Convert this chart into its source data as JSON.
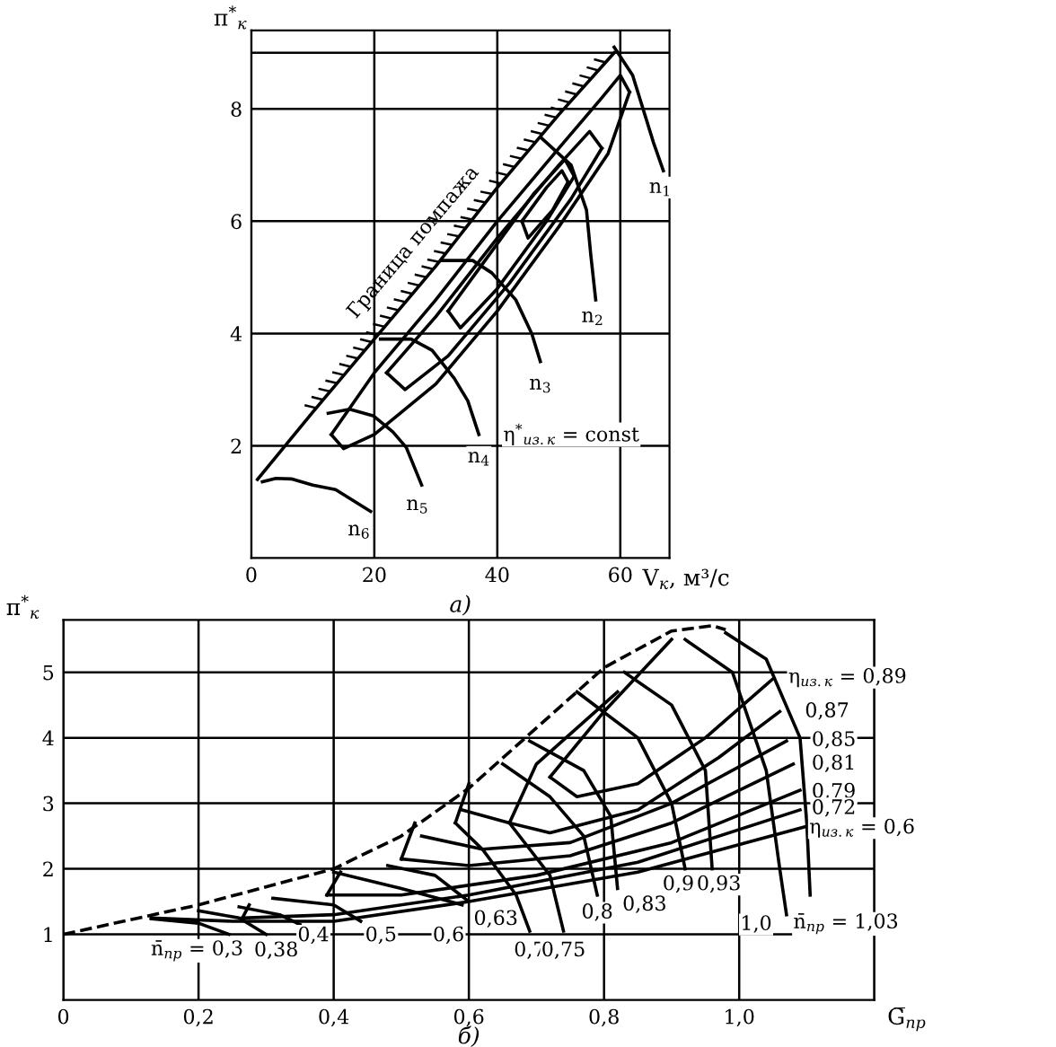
{
  "chart_data": [
    {
      "type": "line",
      "xlabel": "V$_{к}$, м³/с",
      "ylabel": "π$^{*}$$_{к}$",
      "xlim": [
        0,
        68
      ],
      "ylim": [
        0,
        9.4
      ],
      "xticks": [
        0,
        20,
        40,
        60
      ],
      "yticks": [
        2,
        4,
        6,
        8,
        {
          "value": 9,
          "label": null
        }
      ],
      "grid": true,
      "legend": false,
      "marker": "none",
      "line_style": "solid",
      "series": [
        {
          "name": "Граница помпажа",
          "color": "#000000",
          "x": [
            1,
            10,
            20,
            30,
            40,
            50,
            59
          ],
          "values": [
            1.4,
            2.6,
            3.9,
            5.2,
            6.6,
            7.9,
            9.0
          ]
        },
        {
          "color": "#000000",
          "x": [
            59,
            62,
            65.4,
            67
          ],
          "values": [
            9.1,
            8.6,
            7.4,
            6.9
          ]
        },
        {
          "color": "#000000",
          "x": [
            47,
            52,
            54.5,
            55.2,
            56
          ],
          "values": [
            7.5,
            7.0,
            6.2,
            5.4,
            4.6
          ]
        },
        {
          "color": "#000000",
          "x": [
            31,
            36,
            39.1,
            43,
            45.6,
            47
          ],
          "values": [
            5.3,
            5.3,
            5.08,
            4.6,
            4.0,
            3.5
          ]
        },
        {
          "color": "#000000",
          "x": [
            21,
            26,
            29.4,
            33,
            35.2,
            37
          ],
          "values": [
            3.9,
            3.9,
            3.7,
            3.2,
            2.8,
            2.2
          ]
        },
        {
          "color": "#000000",
          "x": [
            12.5,
            16,
            19.9,
            23,
            25.2,
            27.7
          ],
          "values": [
            2.58,
            2.65,
            2.53,
            2.25,
            1.97,
            1.3
          ]
        },
        {
          "color": "#000000",
          "x": [
            1.8,
            4,
            6.5,
            10,
            13.7,
            19.4
          ],
          "values": [
            1.36,
            1.42,
            1.41,
            1.3,
            1.22,
            0.83
          ]
        },
        {
          "color": "#000000",
          "x": [
            13,
            20,
            30,
            40,
            50,
            57,
            60,
            61.5
          ],
          "values": [
            2.2,
            3.3,
            4.6,
            6.0,
            7.3,
            8.2,
            8.6,
            8.3
          ]
        },
        {
          "color": "#000000",
          "x": [
            13,
            15,
            20,
            30,
            40,
            50,
            58,
            61.5
          ],
          "values": [
            2.2,
            1.95,
            2.2,
            3.1,
            4.4,
            5.9,
            7.2,
            8.3
          ]
        },
        {
          "color": "#000000",
          "x": [
            22,
            30,
            40,
            50,
            55,
            57
          ],
          "values": [
            3.3,
            4.3,
            5.7,
            7.0,
            7.6,
            7.3
          ]
        },
        {
          "color": "#000000",
          "x": [
            22,
            25,
            32,
            42,
            52,
            57
          ],
          "values": [
            3.3,
            3.0,
            3.6,
            4.9,
            6.4,
            7.3
          ]
        },
        {
          "color": "#000000",
          "x": [
            32,
            38,
            46,
            51,
            52.5
          ],
          "values": [
            4.4,
            5.3,
            6.5,
            7.1,
            6.8
          ]
        },
        {
          "color": "#000000",
          "x": [
            32,
            34,
            40,
            48,
            52.5
          ],
          "values": [
            4.4,
            4.1,
            4.8,
            6.0,
            6.8
          ]
        },
        {
          "color": "#000000",
          "x": [
            44,
            48,
            50.5,
            51.5
          ],
          "values": [
            6.0,
            6.6,
            6.9,
            6.7
          ]
        },
        {
          "color": "#000000",
          "x": [
            44,
            45,
            49,
            51.5
          ],
          "values": [
            6.0,
            5.7,
            6.2,
            6.7
          ]
        }
      ],
      "annotations": [
        {
          "text": "n$_{1}$",
          "x": 66.5,
          "y": 6.6
        },
        {
          "text": "n$_{2}$",
          "x": 55.5,
          "y": 4.3
        },
        {
          "text": "n$_{3}$",
          "x": 47,
          "y": 3.1
        },
        {
          "text": "n$_{4}$",
          "x": 37,
          "y": 1.8
        },
        {
          "text": "n$_{5}$",
          "x": 27,
          "y": 0.95
        },
        {
          "text": "n$_{6}$",
          "x": 17.5,
          "y": 0.5
        },
        "η$^{*}$$_{из.к}$ = const",
        "а)"
      ]
    },
    {
      "type": "line",
      "xlabel": "G̅$_{пр}$",
      "ylabel": "π$^{*}$$_{к}$",
      "xlim": [
        0,
        1.2
      ],
      "ylim": [
        0,
        5.8
      ],
      "xticks": [
        0,
        {
          "value": 0.2,
          "label": "0,2"
        },
        {
          "value": 0.4,
          "label": "0,4"
        },
        {
          "value": 0.6,
          "label": "0,6"
        },
        {
          "value": 0.8,
          "label": "0,8"
        },
        {
          "value": 1.0,
          "label": "1,0"
        },
        {
          "value": 1.2,
          "label": null
        }
      ],
      "yticks": [
        1,
        2,
        3,
        4,
        5
      ],
      "grid": true,
      "legend": false,
      "marker": "none",
      "line_style": "solid",
      "series": [
        {
          "color": "#000000",
          "line_style": "dashed",
          "x": [
            0,
            0.2,
            0.4,
            0.5,
            0.6,
            0.7,
            0.8,
            0.9,
            0.96,
            0.98
          ],
          "values": [
            1.0,
            1.45,
            2.0,
            2.5,
            3.23,
            4.15,
            5.07,
            5.63,
            5.71,
            5.65
          ]
        },
        {
          "color": "#000000",
          "x": [
            0.13,
            0.2,
            0.245
          ],
          "values": [
            1.24,
            1.17,
            1.0
          ]
        },
        {
          "color": "#000000",
          "x": [
            0.2,
            0.26,
            0.3
          ],
          "values": [
            1.36,
            1.25,
            1.0
          ]
        },
        {
          "color": "#000000",
          "x": [
            0.26,
            0.32,
            0.35
          ],
          "values": [
            1.42,
            1.3,
            1.15
          ]
        },
        {
          "color": "#000000",
          "x": [
            0.31,
            0.4,
            0.44
          ],
          "values": [
            1.55,
            1.45,
            1.2
          ]
        },
        {
          "color": "#000000",
          "x": [
            0.4,
            0.5,
            0.59
          ],
          "values": [
            1.95,
            1.7,
            1.45
          ]
        },
        {
          "color": "#000000",
          "x": [
            0.48,
            0.55,
            0.6
          ],
          "values": [
            2.05,
            1.9,
            1.5
          ]
        },
        {
          "color": "#000000",
          "x": [
            0.53,
            0.62,
            0.67,
            0.69
          ],
          "values": [
            2.5,
            2.3,
            1.6,
            1.05
          ]
        },
        {
          "color": "#000000",
          "x": [
            0.59,
            0.66,
            0.72,
            0.74
          ],
          "values": [
            2.9,
            2.7,
            1.9,
            1.05
          ]
        },
        {
          "color": "#000000",
          "x": [
            0.65,
            0.72,
            0.77,
            0.79
          ],
          "values": [
            3.6,
            3.1,
            2.5,
            1.6
          ]
        },
        {
          "color": "#000000",
          "x": [
            0.69,
            0.77,
            0.81,
            0.82
          ],
          "values": [
            3.95,
            3.5,
            2.8,
            1.7
          ]
        },
        {
          "color": "#000000",
          "x": [
            0.76,
            0.85,
            0.9,
            0.92
          ],
          "values": [
            4.7,
            4.0,
            3.0,
            2.0
          ]
        },
        {
          "color": "#000000",
          "x": [
            0.83,
            0.9,
            0.95,
            0.96
          ],
          "values": [
            5.0,
            4.5,
            3.5,
            2.0
          ]
        },
        {
          "color": "#000000",
          "x": [
            0.92,
            0.99,
            1.04,
            1.06,
            1.07
          ],
          "values": [
            5.5,
            5.0,
            3.5,
            2.0,
            1.3
          ]
        },
        {
          "color": "#000000",
          "x": [
            0.98,
            1.04,
            1.09,
            1.1,
            1.105
          ],
          "values": [
            5.6,
            5.2,
            4.0,
            2.7,
            1.6
          ]
        },
        {
          "color": "#000000",
          "x": [
            0.72,
            0.8,
            0.9
          ],
          "values": [
            3.4,
            4.4,
            5.5
          ]
        },
        {
          "color": "#000000",
          "x": [
            0.72,
            0.76,
            0.85,
            0.95,
            1.05
          ],
          "values": [
            3.4,
            3.1,
            3.3,
            4.0,
            4.9
          ]
        },
        {
          "color": "#000000",
          "x": [
            0.66,
            0.7,
            0.82
          ],
          "values": [
            2.7,
            3.6,
            4.7
          ]
        },
        {
          "color": "#000000",
          "x": [
            0.66,
            0.72,
            0.85,
            0.97,
            1.06
          ],
          "values": [
            2.7,
            2.55,
            2.9,
            3.7,
            4.4
          ]
        },
        {
          "color": "#000000",
          "x": [
            0.58,
            0.6
          ],
          "values": [
            2.7,
            3.3
          ]
        },
        {
          "color": "#000000",
          "x": [
            0.58,
            0.62,
            0.75,
            0.9,
            1.07
          ],
          "values": [
            2.7,
            2.3,
            2.4,
            3.0,
            3.95
          ]
        },
        {
          "color": "#000000",
          "x": [
            0.5,
            0.52
          ],
          "values": [
            2.15,
            2.7
          ]
        },
        {
          "color": "#000000",
          "x": [
            0.5,
            0.6,
            0.75,
            0.9,
            1.08
          ],
          "values": [
            2.15,
            2.05,
            2.2,
            2.7,
            3.6
          ]
        },
        {
          "color": "#000000",
          "x": [
            0.39,
            0.41
          ],
          "values": [
            1.6,
            1.95
          ]
        },
        {
          "color": "#000000",
          "x": [
            0.39,
            0.5,
            0.7,
            0.9,
            1.09
          ],
          "values": [
            1.6,
            1.6,
            1.9,
            2.4,
            3.2
          ]
        },
        {
          "color": "#000000",
          "x": [
            0.265,
            0.275
          ],
          "values": [
            1.25,
            1.45
          ]
        },
        {
          "color": "#000000",
          "x": [
            0.265,
            0.4,
            0.6,
            0.85,
            1.09
          ],
          "values": [
            1.25,
            1.3,
            1.6,
            2.1,
            2.9
          ]
        },
        {
          "color": "#000000",
          "x": [
            0.13,
            0.25,
            0.4,
            0.6,
            0.85,
            1.1
          ],
          "values": [
            1.25,
            1.2,
            1.2,
            1.5,
            1.95,
            2.65
          ]
        }
      ],
      "annotations": [
        "n̄$_{пр}$ = 0,3",
        {
          "text": "0,38",
          "x": 0.315,
          "y": 0.75
        },
        {
          "text": "0,4",
          "x": 0.37,
          "y": 0.98
        },
        {
          "text": "0,5",
          "x": 0.47,
          "y": 0.98
        },
        {
          "text": "0,6",
          "x": 0.57,
          "y": 0.98
        },
        {
          "text": "0,63",
          "x": 0.64,
          "y": 1.23
        },
        {
          "text": "0,7",
          "x": 0.69,
          "y": 0.75
        },
        {
          "text": "0,75",
          "x": 0.74,
          "y": 0.75
        },
        {
          "text": "0,8",
          "x": 0.79,
          "y": 1.33
        },
        {
          "text": "0,83",
          "x": 0.86,
          "y": 1.45
        },
        {
          "text": "0,9",
          "x": 0.91,
          "y": 1.76
        },
        {
          "text": "0,93",
          "x": 0.97,
          "y": 1.76
        },
        {
          "text": "1,0",
          "x": 1.025,
          "y": 1.15
        },
        "n̄$_{пр}$ = 1,03",
        "η$_{из.к}$ = 0,89",
        {
          "text": "0,87",
          "x": 1.13,
          "y": 4.4
        },
        {
          "text": "0,85",
          "x": 1.14,
          "y": 3.96
        },
        {
          "text": "0,81",
          "x": 1.14,
          "y": 3.6
        },
        {
          "text": "0,79",
          "x": 1.14,
          "y": 3.17
        },
        {
          "text": "0,72",
          "x": 1.14,
          "y": 2.92
        },
        "η$_{из.к}$ = 0,6",
        "б)"
      ]
    }
  ]
}
